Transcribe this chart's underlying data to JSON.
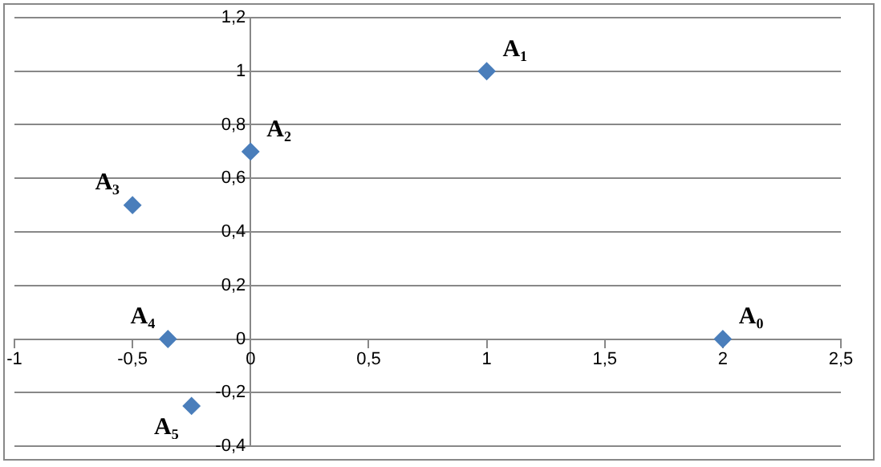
{
  "chart_data": {
    "type": "scatter",
    "x": [
      2,
      1,
      0,
      -0.5,
      -0.35,
      -0.25
    ],
    "values": [
      0,
      1,
      0.7,
      0.5,
      0,
      -0.25
    ],
    "color": "#4a7ebb",
    "marker": "diamond",
    "grid": "y",
    "legend": false,
    "xlim": [
      -1,
      2.5
    ],
    "xticks": [
      -1,
      {
        "value": -0.5,
        "label": "-0,5"
      },
      0,
      {
        "value": 0.5,
        "label": "0,5"
      },
      1,
      {
        "value": 1.5,
        "label": "1,5"
      },
      2,
      {
        "value": 2.5,
        "label": "2,5"
      }
    ],
    "ylim": [
      -0.4,
      1.2
    ],
    "yticks": [
      {
        "value": -0.4,
        "label": "-0,4"
      },
      {
        "value": -0.2,
        "label": "-0,2"
      },
      0,
      {
        "value": 0.2,
        "label": "0,2"
      },
      {
        "value": 0.4,
        "label": "0,4"
      },
      {
        "value": 0.6,
        "label": "0,6"
      },
      {
        "value": 0.8,
        "label": "0,8"
      },
      1,
      {
        "value": 1.2,
        "label": "1,2"
      }
    ],
    "annotations": [
      {
        "text": "A₀",
        "x": 2,
        "y": 0
      },
      {
        "text": "A₁",
        "x": 1,
        "y": 1
      },
      {
        "text": "A₂",
        "x": 0,
        "y": 0.7
      },
      {
        "text": "A₃",
        "x": -0.5,
        "y": 0.5
      },
      {
        "text": "A₄",
        "x": -0.35,
        "y": 0
      },
      {
        "text": "A₅",
        "x": -0.25,
        "y": -0.25
      }
    ]
  }
}
